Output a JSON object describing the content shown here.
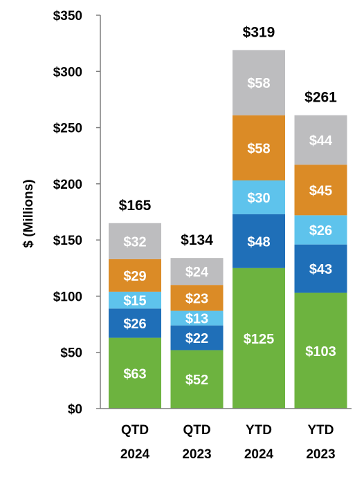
{
  "chart_data": {
    "type": "bar",
    "stacked": true,
    "ylabel": "$ (Millions)",
    "ylim": [
      0,
      350
    ],
    "yticks": [
      "$0",
      "$50",
      "$100",
      "$150",
      "$200",
      "$250",
      "$300",
      "$350"
    ],
    "ytick_values": [
      0,
      50,
      100,
      150,
      200,
      250,
      300,
      350
    ],
    "categories": [
      {
        "line1": "QTD",
        "line2": "2024"
      },
      {
        "line1": "QTD",
        "line2": "2023"
      },
      {
        "line1": "YTD",
        "line2": "2024"
      },
      {
        "line1": "YTD",
        "line2": "2023"
      }
    ],
    "series": [
      {
        "color": "#6DB33F",
        "values": [
          63,
          52,
          125,
          103
        ],
        "labels": [
          "$63",
          "$52",
          "$125",
          "$103"
        ]
      },
      {
        "color": "#1F6FB8",
        "values": [
          26,
          22,
          48,
          43
        ],
        "labels": [
          "$26",
          "$22",
          "$48",
          "$43"
        ]
      },
      {
        "color": "#5EC3EC",
        "values": [
          15,
          13,
          30,
          26
        ],
        "labels": [
          "$15",
          "$13",
          "$30",
          "$26"
        ]
      },
      {
        "color": "#DB8B26",
        "values": [
          29,
          23,
          58,
          45
        ],
        "labels": [
          "$29",
          "$23",
          "$58",
          "$45"
        ]
      },
      {
        "color": "#BDBDBF",
        "values": [
          32,
          24,
          58,
          44
        ],
        "labels": [
          "$32",
          "$24",
          "$58",
          "$44"
        ]
      }
    ],
    "totals": [
      165,
      134,
      319,
      261
    ],
    "total_labels": [
      "$165",
      "$134",
      "$319",
      "$261"
    ],
    "grid": false,
    "legend": "none"
  }
}
